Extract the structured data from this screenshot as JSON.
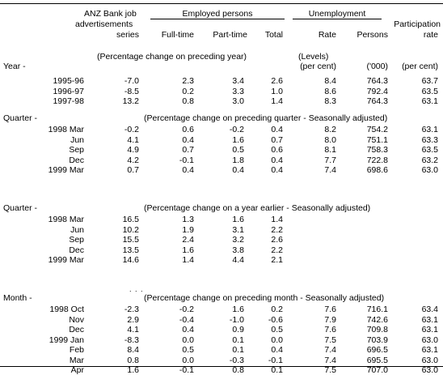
{
  "header": {
    "anz_line1": "ANZ Bank job",
    "anz_line2": "advertisements",
    "anz_line3": "series",
    "employed_group": "Employed persons",
    "unemployment_group": "Unemployment",
    "participation_line1": "Participation",
    "participation_line2": "rate",
    "col_fulltime": "Full-time",
    "col_parttime": "Part-time",
    "col_total": "Total",
    "col_rate": "Rate",
    "col_persons": "Persons"
  },
  "units": {
    "levels": "(Levels)",
    "percent": "(per cent)",
    "thousands": "('000)",
    "percent2": "(per cent)"
  },
  "sections": [
    {
      "label": "Year -",
      "note": "(Percentage change on preceding year)",
      "rows": [
        {
          "period": "1995-96",
          "anz": "-7.0",
          "ft": "2.3",
          "pt": "3.4",
          "tot": "2.6",
          "rate": "8.4",
          "persons": "764.3",
          "part": "63.7"
        },
        {
          "period": "1996-97",
          "anz": "-8.5",
          "ft": "0.2",
          "pt": "3.3",
          "tot": "1.0",
          "rate": "8.6",
          "persons": "792.4",
          "part": "63.5"
        },
        {
          "period": "1997-98",
          "anz": "13.2",
          "ft": "0.8",
          "pt": "3.0",
          "tot": "1.4",
          "rate": "8.3",
          "persons": "764.3",
          "part": "63.1"
        }
      ]
    },
    {
      "label": "Quarter -",
      "note": "(Percentage change on preceding quarter - Seasonally adjusted)",
      "rows": [
        {
          "period": "1998 Mar",
          "anz": "-0.2",
          "ft": "0.6",
          "pt": "-0.2",
          "tot": "0.4",
          "rate": "8.2",
          "persons": "754.2",
          "part": "63.1"
        },
        {
          "period": "Jun",
          "anz": "4.1",
          "ft": "0.4",
          "pt": "1.6",
          "tot": "0.7",
          "rate": "8.0",
          "persons": "751.1",
          "part": "63.3"
        },
        {
          "period": "Sep",
          "anz": "4.9",
          "ft": "0.7",
          "pt": "0.5",
          "tot": "0.6",
          "rate": "8.1",
          "persons": "758.3",
          "part": "63.5"
        },
        {
          "period": "Dec",
          "anz": "4.2",
          "ft": "-0.1",
          "pt": "1.8",
          "tot": "0.4",
          "rate": "7.7",
          "persons": "722.8",
          "part": "63.2"
        },
        {
          "period": "1999 Mar",
          "anz": "0.7",
          "ft": "0.4",
          "pt": "0.4",
          "tot": "0.4",
          "rate": "7.4",
          "persons": "698.6",
          "part": "63.0"
        }
      ]
    },
    {
      "label": "Quarter -",
      "note": "(Percentage change on a year earlier - Seasonally adjusted)",
      "rows": [
        {
          "period": "1998 Mar",
          "anz": "16.5",
          "ft": "1.3",
          "pt": "1.6",
          "tot": "1.4",
          "rate": "",
          "persons": "",
          "part": ""
        },
        {
          "period": "Jun",
          "anz": "10.2",
          "ft": "1.9",
          "pt": "3.1",
          "tot": "2.2",
          "rate": "",
          "persons": "",
          "part": ""
        },
        {
          "period": "Sep",
          "anz": "15.5",
          "ft": "2.4",
          "pt": "3.2",
          "tot": "2.6",
          "rate": "",
          "persons": "",
          "part": ""
        },
        {
          "period": "Dec",
          "anz": "13.5",
          "ft": "1.6",
          "pt": "3.8",
          "tot": "2.2",
          "rate": "",
          "persons": "",
          "part": ""
        },
        {
          "period": "1999 Mar",
          "anz": "14.6",
          "ft": "1.4",
          "pt": "4.4",
          "tot": "2.1",
          "rate": "",
          "persons": "",
          "part": ""
        }
      ]
    },
    {
      "label": "Month -",
      "note": "(Percentage change on preceding month - Seasonally adjusted)",
      "rows": [
        {
          "period": "1998 Oct",
          "anz": "-2.3",
          "ft": "-0.2",
          "pt": "1.6",
          "tot": "0.2",
          "rate": "7.6",
          "persons": "716.1",
          "part": "63.4"
        },
        {
          "period": "Nov",
          "anz": "2.9",
          "ft": "-0.4",
          "pt": "-1.0",
          "tot": "-0.6",
          "rate": "7.9",
          "persons": "742.6",
          "part": "63.1"
        },
        {
          "period": "Dec",
          "anz": "4.1",
          "ft": "0.4",
          "pt": "0.9",
          "tot": "0.5",
          "rate": "7.6",
          "persons": "709.8",
          "part": "63.1"
        },
        {
          "period": "1999 Jan",
          "anz": "-8.3",
          "ft": "0.0",
          "pt": "0.1",
          "tot": "0.0",
          "rate": "7.5",
          "persons": "703.9",
          "part": "63.0"
        },
        {
          "period": "Feb",
          "anz": "8.4",
          "ft": "0.5",
          "pt": "0.1",
          "tot": "0.4",
          "rate": "7.4",
          "persons": "696.5",
          "part": "63.1"
        },
        {
          "period": "Mar",
          "anz": "0.8",
          "ft": "0.0",
          "pt": "-0.3",
          "tot": "-0.1",
          "rate": "7.4",
          "persons": "695.5",
          "part": "63.0"
        },
        {
          "period": "Apr",
          "anz": "1.6",
          "ft": "-0.1",
          "pt": "0.8",
          "tot": "0.1",
          "rate": "7.5",
          "persons": "707.0",
          "part": "63.0"
        }
      ]
    }
  ]
}
